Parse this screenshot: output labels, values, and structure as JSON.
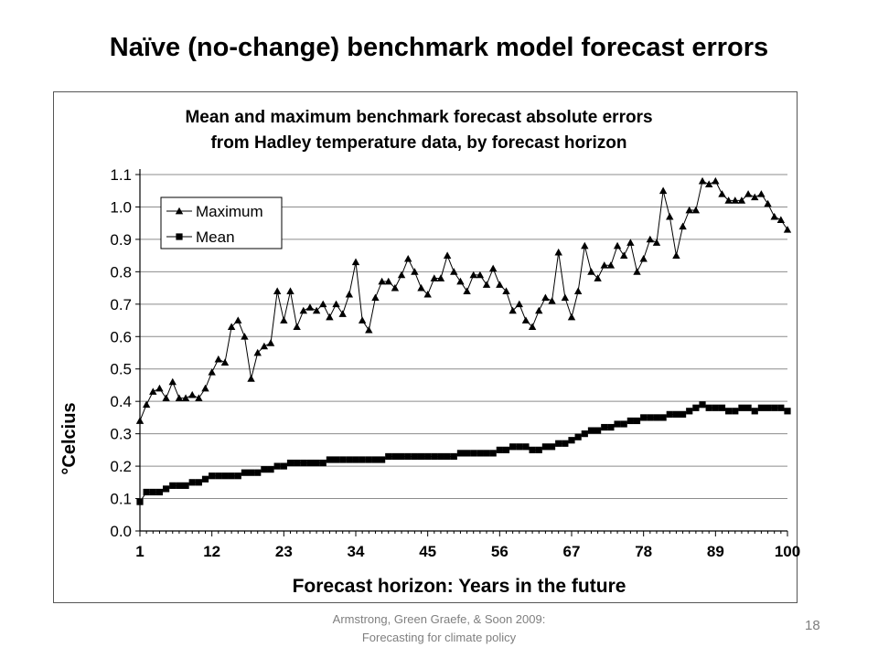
{
  "slide": {
    "title": "Naïve (no-change) benchmark model forecast errors",
    "footer_line1": "Armstrong, Green Graefe, & Soon 2009:",
    "footer_line2": "Forecasting for climate policy",
    "page_number": "18"
  },
  "chart_data": {
    "type": "line",
    "title_line1": "Mean and maximum benchmark forecast absolute errors",
    "title_line2": "from Hadley temperature data, by forecast horizon",
    "xlabel": "Forecast horizon: Years in the future",
    "ylabel": "°Celcius",
    "xlim": [
      1,
      100
    ],
    "ylim": [
      0.0,
      1.1
    ],
    "xticks": [
      "1",
      "12",
      "23",
      "34",
      "45",
      "56",
      "67",
      "78",
      "89",
      "100"
    ],
    "yticks": [
      "0.0",
      "0.1",
      "0.2",
      "0.3",
      "0.4",
      "0.5",
      "0.6",
      "0.7",
      "0.8",
      "0.9",
      "1.0",
      "1.1"
    ],
    "grid": "horizontal",
    "legend_position": "top-left",
    "series": [
      {
        "name": "Maximum",
        "marker": "triangle",
        "color": "#000000",
        "values": [
          0.34,
          0.39,
          0.43,
          0.44,
          0.41,
          0.46,
          0.41,
          0.41,
          0.42,
          0.41,
          0.44,
          0.49,
          0.53,
          0.52,
          0.63,
          0.65,
          0.6,
          0.47,
          0.55,
          0.57,
          0.58,
          0.74,
          0.65,
          0.74,
          0.63,
          0.68,
          0.69,
          0.68,
          0.7,
          0.66,
          0.7,
          0.67,
          0.73,
          0.83,
          0.65,
          0.62,
          0.72,
          0.77,
          0.77,
          0.75,
          0.79,
          0.84,
          0.8,
          0.75,
          0.73,
          0.78,
          0.78,
          0.85,
          0.8,
          0.77,
          0.74,
          0.79,
          0.79,
          0.76,
          0.81,
          0.76,
          0.74,
          0.68,
          0.7,
          0.65,
          0.63,
          0.68,
          0.72,
          0.71,
          0.86,
          0.72,
          0.66,
          0.74,
          0.88,
          0.8,
          0.78,
          0.82,
          0.82,
          0.88,
          0.85,
          0.89,
          0.8,
          0.84,
          0.9,
          0.89,
          1.05,
          0.97,
          0.85,
          0.94,
          0.99,
          0.99,
          1.08,
          1.07,
          1.08,
          1.04,
          1.02,
          1.02,
          1.02,
          1.04,
          1.03,
          1.04,
          1.01,
          0.97,
          0.96,
          0.93
        ]
      },
      {
        "name": "Mean",
        "marker": "square",
        "color": "#000000",
        "values": [
          0.09,
          0.12,
          0.12,
          0.12,
          0.13,
          0.14,
          0.14,
          0.14,
          0.15,
          0.15,
          0.16,
          0.17,
          0.17,
          0.17,
          0.17,
          0.17,
          0.18,
          0.18,
          0.18,
          0.19,
          0.19,
          0.2,
          0.2,
          0.21,
          0.21,
          0.21,
          0.21,
          0.21,
          0.21,
          0.22,
          0.22,
          0.22,
          0.22,
          0.22,
          0.22,
          0.22,
          0.22,
          0.22,
          0.23,
          0.23,
          0.23,
          0.23,
          0.23,
          0.23,
          0.23,
          0.23,
          0.23,
          0.23,
          0.23,
          0.24,
          0.24,
          0.24,
          0.24,
          0.24,
          0.24,
          0.25,
          0.25,
          0.26,
          0.26,
          0.26,
          0.25,
          0.25,
          0.26,
          0.26,
          0.27,
          0.27,
          0.28,
          0.29,
          0.3,
          0.31,
          0.31,
          0.32,
          0.32,
          0.33,
          0.33,
          0.34,
          0.34,
          0.35,
          0.35,
          0.35,
          0.35,
          0.36,
          0.36,
          0.36,
          0.37,
          0.38,
          0.39,
          0.38,
          0.38,
          0.38,
          0.37,
          0.37,
          0.38,
          0.38,
          0.37,
          0.38,
          0.38,
          0.38,
          0.38,
          0.37
        ]
      }
    ]
  }
}
